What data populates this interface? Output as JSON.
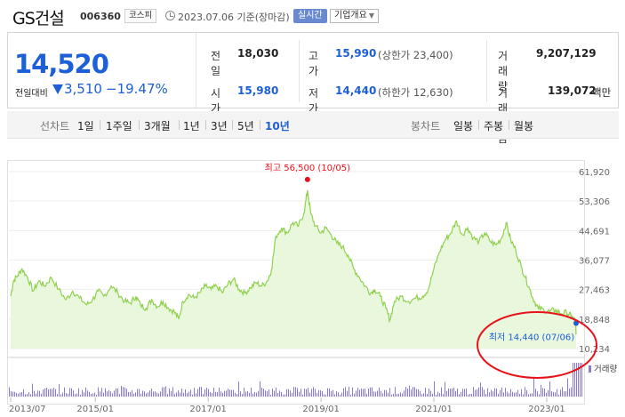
{
  "header": {
    "name": "GS건설",
    "code": "006360",
    "market": "코스피",
    "date": "2023.07.06 기준(장마감)",
    "live": "실시간",
    "info": "기업개요"
  },
  "price": {
    "current": "14,520",
    "change_label": "전일대비",
    "change": "3,510",
    "change_pct": "−19.47%",
    "prev_close_label": "전일",
    "prev_close": "18,030",
    "high_label": "고가",
    "high": "15,990",
    "upper_limit": "(상한가 23,400)",
    "volume_label": "거래량",
    "volume": "9,207,129",
    "open_label": "시가",
    "open": "15,980",
    "low_label": "저가",
    "low": "14,440",
    "lower_limit": "(하한가 12,630)",
    "amount_label": "거래대금",
    "amount": "139,072",
    "amount_unit": "백만"
  },
  "tabs": {
    "line_label": "선차트",
    "periods": [
      "1일",
      "1주일",
      "3개월",
      "1년",
      "3년",
      "5년",
      "10년"
    ],
    "selected": "10년",
    "candle_label": "봉차트",
    "candles": [
      "일봉",
      "주봉",
      "월봉"
    ]
  },
  "colors": {
    "accent": "#1c5fd6",
    "line": "#8fd14f",
    "area": "#e9f8dc",
    "volume": "#8c7cc4",
    "high_marker": "#e8121b",
    "annotation_circle": "#e8121b"
  },
  "chart_data": {
    "type": "area",
    "y_ticks": [
      "61,920",
      "53,306",
      "44,691",
      "36,077",
      "27,463",
      "18,848",
      "10,234"
    ],
    "ylim": [
      10234,
      61920
    ],
    "x_ticks": [
      "2013/07",
      "2015/01",
      "2017/01",
      "2019/01",
      "2021/01",
      "2023/01"
    ],
    "x_tick_values": [
      2013.5,
      2015.0,
      2017.0,
      2019.0,
      2021.0,
      2023.0
    ],
    "xlim": [
      2013.5,
      2023.52
    ],
    "max_label": "최고 56,500 (10/05)",
    "min_label": "최저 14,440 (07/06)",
    "volume_label": "거래량",
    "price_points": [
      [
        2013.5,
        25500
      ],
      [
        2013.55,
        30000
      ],
      [
        2013.62,
        31500
      ],
      [
        2013.7,
        33500
      ],
      [
        2013.8,
        31000
      ],
      [
        2013.9,
        27000
      ],
      [
        2014.0,
        30000
      ],
      [
        2014.1,
        28500
      ],
      [
        2014.22,
        31000
      ],
      [
        2014.35,
        27500
      ],
      [
        2014.48,
        24500
      ],
      [
        2014.6,
        27000
      ],
      [
        2014.72,
        25000
      ],
      [
        2014.85,
        23000
      ],
      [
        2014.95,
        24500
      ],
      [
        2015.05,
        27000
      ],
      [
        2015.15,
        25500
      ],
      [
        2015.28,
        28500
      ],
      [
        2015.4,
        26500
      ],
      [
        2015.52,
        24000
      ],
      [
        2015.62,
        23500
      ],
      [
        2015.72,
        25500
      ],
      [
        2015.8,
        23000
      ],
      [
        2015.9,
        22000
      ],
      [
        2016.0,
        24500
      ],
      [
        2016.1,
        22500
      ],
      [
        2016.2,
        24000
      ],
      [
        2016.3,
        22000
      ],
      [
        2016.4,
        21000
      ],
      [
        2016.48,
        18800
      ],
      [
        2016.55,
        24000
      ],
      [
        2016.65,
        26000
      ],
      [
        2016.75,
        25000
      ],
      [
        2016.85,
        26500
      ],
      [
        2016.95,
        28500
      ],
      [
        2017.05,
        27500
      ],
      [
        2017.15,
        28500
      ],
      [
        2017.25,
        26500
      ],
      [
        2017.35,
        29000
      ],
      [
        2017.45,
        30500
      ],
      [
        2017.55,
        27500
      ],
      [
        2017.65,
        26500
      ],
      [
        2017.75,
        28000
      ],
      [
        2017.85,
        29500
      ],
      [
        2017.95,
        28500
      ],
      [
        2018.05,
        30000
      ],
      [
        2018.12,
        33000
      ],
      [
        2018.2,
        43000
      ],
      [
        2018.3,
        45500
      ],
      [
        2018.4,
        44000
      ],
      [
        2018.5,
        47000
      ],
      [
        2018.6,
        46000
      ],
      [
        2018.7,
        50000
      ],
      [
        2018.76,
        56500
      ],
      [
        2018.82,
        49500
      ],
      [
        2018.9,
        46000
      ],
      [
        2019.0,
        44000
      ],
      [
        2019.08,
        45500
      ],
      [
        2019.18,
        43500
      ],
      [
        2019.28,
        41000
      ],
      [
        2019.38,
        40000
      ],
      [
        2019.48,
        37500
      ],
      [
        2019.58,
        33500
      ],
      [
        2019.68,
        31000
      ],
      [
        2019.78,
        28500
      ],
      [
        2019.88,
        26500
      ],
      [
        2019.95,
        27500
      ],
      [
        2020.05,
        25500
      ],
      [
        2020.15,
        22000
      ],
      [
        2020.22,
        18500
      ],
      [
        2020.3,
        24000
      ],
      [
        2020.42,
        25500
      ],
      [
        2020.55,
        24000
      ],
      [
        2020.68,
        25000
      ],
      [
        2020.8,
        25500
      ],
      [
        2020.9,
        27500
      ],
      [
        2021.0,
        33500
      ],
      [
        2021.1,
        38500
      ],
      [
        2021.2,
        42000
      ],
      [
        2021.3,
        44000
      ],
      [
        2021.4,
        47500
      ],
      [
        2021.5,
        43500
      ],
      [
        2021.6,
        45500
      ],
      [
        2021.7,
        42500
      ],
      [
        2021.8,
        41500
      ],
      [
        2021.9,
        44000
      ],
      [
        2022.0,
        41500
      ],
      [
        2022.1,
        40500
      ],
      [
        2022.2,
        42500
      ],
      [
        2022.28,
        47000
      ],
      [
        2022.36,
        42000
      ],
      [
        2022.45,
        39000
      ],
      [
        2022.55,
        34000
      ],
      [
        2022.62,
        31000
      ],
      [
        2022.7,
        27500
      ],
      [
        2022.78,
        24000
      ],
      [
        2022.85,
        22000
      ],
      [
        2022.95,
        21500
      ],
      [
        2023.05,
        21000
      ],
      [
        2023.15,
        21500
      ],
      [
        2023.25,
        20500
      ],
      [
        2023.35,
        20800
      ],
      [
        2023.43,
        19800
      ],
      [
        2023.47,
        19000
      ],
      [
        2023.51,
        18030
      ],
      [
        2023.52,
        14520
      ]
    ]
  }
}
